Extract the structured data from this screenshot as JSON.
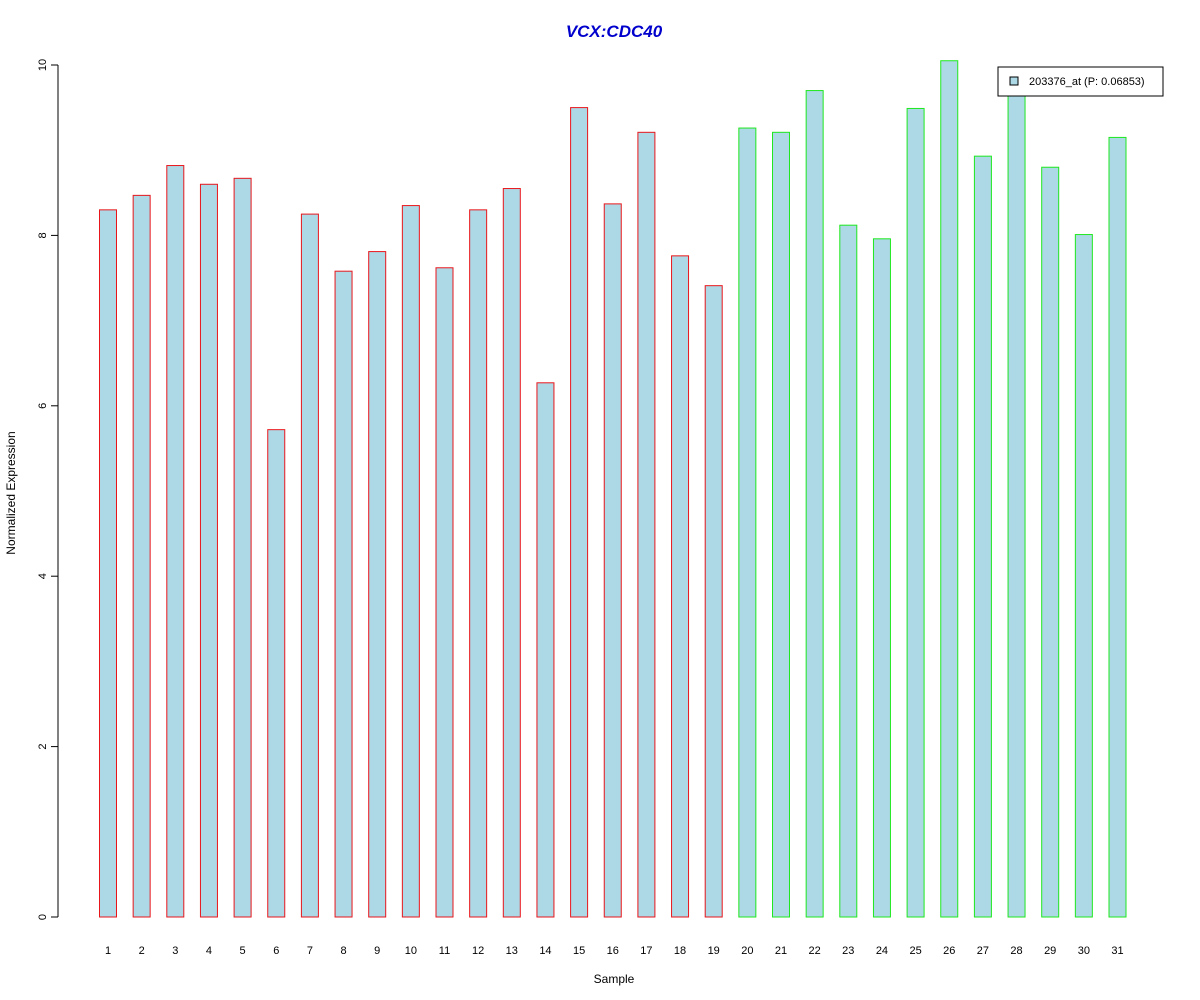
{
  "chart_data": {
    "type": "bar",
    "title": "VCX:CDC40",
    "xlabel": "Sample",
    "ylabel": "Normalized Expression",
    "ylim": [
      0,
      10
    ],
    "yticks": [
      0,
      2,
      4,
      6,
      8,
      10
    ],
    "grid": false,
    "legend_position": "top-right",
    "categories": [
      "1",
      "2",
      "3",
      "4",
      "5",
      "6",
      "7",
      "8",
      "9",
      "10",
      "11",
      "12",
      "13",
      "14",
      "15",
      "16",
      "17",
      "18",
      "19",
      "20",
      "21",
      "22",
      "23",
      "24",
      "25",
      "26",
      "27",
      "28",
      "29",
      "30",
      "31"
    ],
    "series": [
      {
        "name": "203376_at (P: 0.06853)",
        "values": [
          8.3,
          8.47,
          8.82,
          8.6,
          8.67,
          5.72,
          8.25,
          7.58,
          7.81,
          8.35,
          7.62,
          8.3,
          8.55,
          6.27,
          9.5,
          8.37,
          9.21,
          7.76,
          7.41,
          9.26,
          9.21,
          9.7,
          8.12,
          7.96,
          9.49,
          10.05,
          8.93,
          9.74,
          8.8,
          8.01,
          9.15
        ]
      }
    ],
    "groups": [
      {
        "samples": [
          1,
          19
        ],
        "border_color": "#e8161b"
      },
      {
        "samples": [
          20,
          31
        ],
        "border_color": "#1ee81e"
      }
    ]
  },
  "colors": {
    "bar_fill": "#add8e6",
    "title": "#0000cc",
    "axis": "#000000"
  }
}
